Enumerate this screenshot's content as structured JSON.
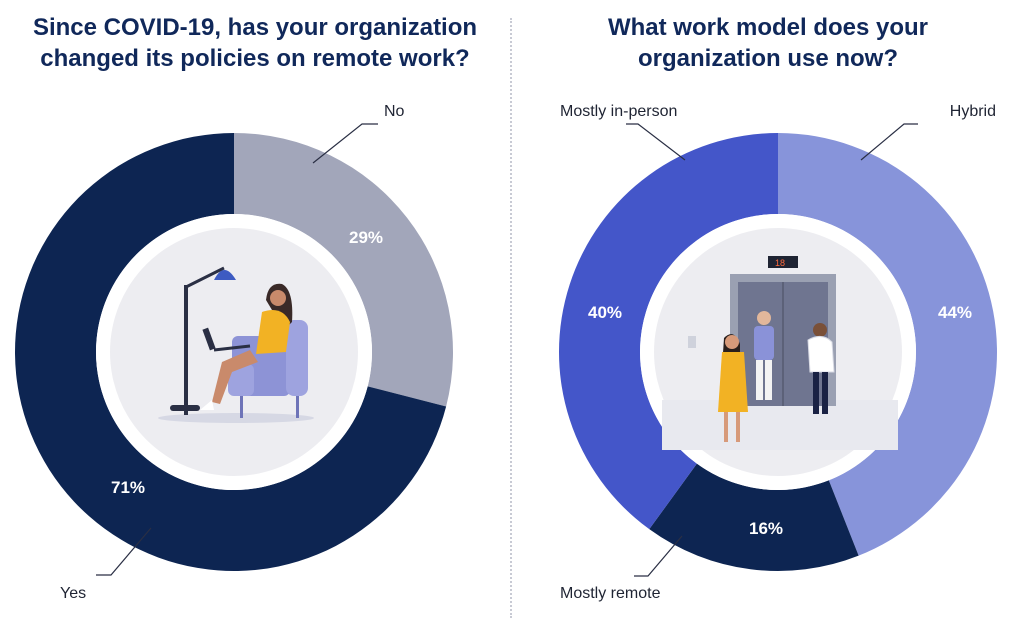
{
  "colors": {
    "title": "#10285a",
    "yes": "#0d2552",
    "no": "#a2a6ba",
    "hybrid": "#8794da",
    "in_person": "#4456c9",
    "remote": "#0d2552"
  },
  "chart_data": [
    {
      "type": "pie",
      "title": "Since COVID-19, has your organization\nchanged its policies on remote work?",
      "slices": [
        {
          "label": "No",
          "value": 29,
          "value_label": "29%",
          "color": "#a2a6ba"
        },
        {
          "label": "Yes",
          "value": 71,
          "value_label": "71%",
          "color": "#0d2552"
        }
      ]
    },
    {
      "type": "pie",
      "title": "What work model does your\norganization use now?",
      "slices": [
        {
          "label": "Hybrid",
          "value": 44,
          "value_label": "44%",
          "color": "#8794da"
        },
        {
          "label": "Mostly remote",
          "value": 16,
          "value_label": "16%",
          "color": "#0d2552"
        },
        {
          "label": "Mostly in-person",
          "value": 40,
          "value_label": "40%",
          "color": "#4456c9"
        }
      ]
    }
  ]
}
